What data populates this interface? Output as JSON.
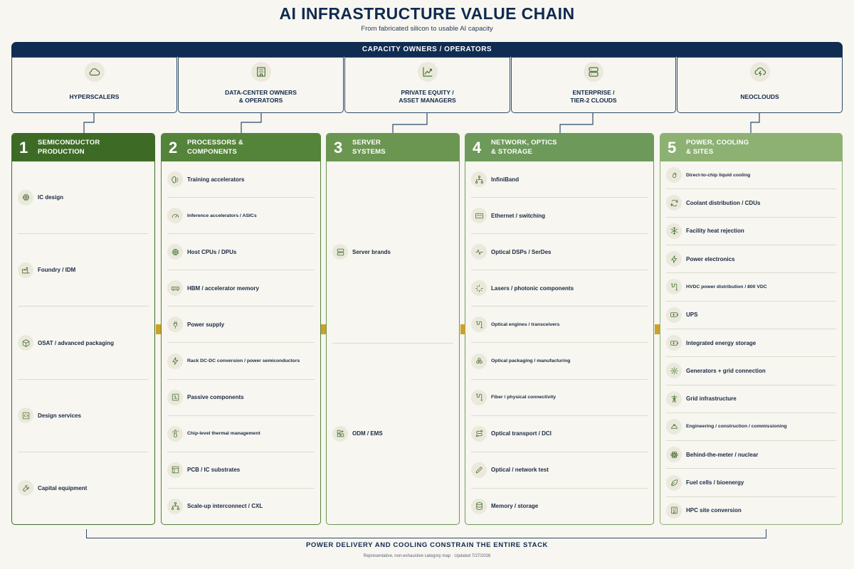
{
  "header": {
    "title": "AI INFRASTRUCTURE VALUE CHAIN",
    "subtitle": "From fabricated silicon to usable AI capacity"
  },
  "owners": {
    "bar_label": "CAPACITY OWNERS / OPERATORS",
    "items": [
      {
        "label": "HYPERSCALERS",
        "icon": "cloud-icon"
      },
      {
        "label": "DATA-CENTER OWNERS\n& OPERATORS",
        "icon": "building-icon"
      },
      {
        "label": "PRIVATE EQUITY /\nASSET MANAGERS",
        "icon": "chart-up-icon"
      },
      {
        "label": "ENTERPRISE /\nTIER-2 CLOUDS",
        "icon": "server-icon"
      },
      {
        "label": "NEOCLOUDS",
        "icon": "cloud-bolt-icon"
      }
    ]
  },
  "columns": [
    {
      "num": "1",
      "title": "SEMICONDUCTOR\nPRODUCTION",
      "color": "#3d6b26",
      "items": [
        {
          "label": "IC design",
          "icon": "chip-icon"
        },
        {
          "label": "Foundry / IDM",
          "icon": "factory-icon"
        },
        {
          "label": "OSAT / advanced packaging",
          "icon": "package-icon"
        },
        {
          "label": "Design services",
          "icon": "code-icon"
        },
        {
          "label": "Capital equipment",
          "icon": "wrench-icon"
        }
      ]
    },
    {
      "num": "2",
      "title": "PROCESSORS &\nCOMPONENTS",
      "color": "#54833a",
      "items": [
        {
          "label": "Training accelerators",
          "icon": "brain-icon"
        },
        {
          "label": "Inference accelerators / ASICs",
          "icon": "gauge-icon",
          "small": true
        },
        {
          "label": "Host CPUs / DPUs",
          "icon": "cpu-icon"
        },
        {
          "label": "HBM / accelerator memory",
          "icon": "memory-icon"
        },
        {
          "label": "Power supply",
          "icon": "plug-icon"
        },
        {
          "label": "Rack DC-DC conversion / power semiconductors",
          "icon": "bolt-icon",
          "small": true
        },
        {
          "label": "Passive components",
          "icon": "circuit-icon"
        },
        {
          "label": "Chip-level thermal management",
          "icon": "thermometer-icon",
          "small": true
        },
        {
          "label": "PCB / IC substrates",
          "icon": "board-icon"
        },
        {
          "label": "Scale-up interconnect / CXL",
          "icon": "network-icon"
        }
      ]
    },
    {
      "num": "3",
      "title": "SERVER\nSYSTEMS",
      "color": "#6b9651",
      "items": [
        {
          "label": "Server brands",
          "icon": "server-icon"
        },
        {
          "label": "ODM / EMS",
          "icon": "grid-icon"
        }
      ]
    },
    {
      "num": "4",
      "title": "NETWORK, OPTICS\n& STORAGE",
      "color": "#6d9a5a",
      "items": [
        {
          "label": "InfiniBand",
          "icon": "network-icon"
        },
        {
          "label": "Ethernet / switching",
          "icon": "ethernet-icon"
        },
        {
          "label": "Optical DSPs / SerDes",
          "icon": "waveform-icon"
        },
        {
          "label": "Lasers / photonic components",
          "icon": "sparkle-icon"
        },
        {
          "label": "Optical engines / transceivers",
          "icon": "cable-icon",
          "small": true
        },
        {
          "label": "Optical packaging / manufacturing",
          "icon": "boxes-icon",
          "small": true
        },
        {
          "label": "Fiber / physical connectivity",
          "icon": "cable-icon",
          "small": true
        },
        {
          "label": "Optical transport / DCI",
          "icon": "route-icon"
        },
        {
          "label": "Optical / network test",
          "icon": "pencil-icon"
        },
        {
          "label": "Memory / storage",
          "icon": "database-icon"
        }
      ]
    },
    {
      "num": "5",
      "title": "POWER, COOLING\n& SITES",
      "color": "#8db173",
      "items": [
        {
          "label": "Direct-to-chip liquid cooling",
          "icon": "droplets-icon",
          "small": true
        },
        {
          "label": "Coolant distribution / CDUs",
          "icon": "refresh-icon"
        },
        {
          "label": "Facility heat rejection",
          "icon": "snowflake-icon"
        },
        {
          "label": "Power electronics",
          "icon": "bolt-icon"
        },
        {
          "label": "HVDC power distribution / 800 VDC",
          "icon": "cable-icon",
          "small": true
        },
        {
          "label": "UPS",
          "icon": "battery-icon"
        },
        {
          "label": "Integrated energy storage",
          "icon": "battery-icon"
        },
        {
          "label": "Generators + grid connection",
          "icon": "cog-icon"
        },
        {
          "label": "Grid infrastructure",
          "icon": "tower-icon"
        },
        {
          "label": "Engineering / construction / commissioning",
          "icon": "hardhat-icon",
          "small": true
        },
        {
          "label": "Behind-the-meter / nuclear",
          "icon": "atom-icon"
        },
        {
          "label": "Fuel cells / bioenergy",
          "icon": "leaf-icon"
        },
        {
          "label": "HPC site conversion",
          "icon": "building-icon"
        }
      ]
    }
  ],
  "footer": {
    "title": "POWER DELIVERY AND COOLING CONSTRAIN THE ENTIRE STACK",
    "note": "Representative, non-exhaustive category map · Updated 7/27/2026"
  }
}
